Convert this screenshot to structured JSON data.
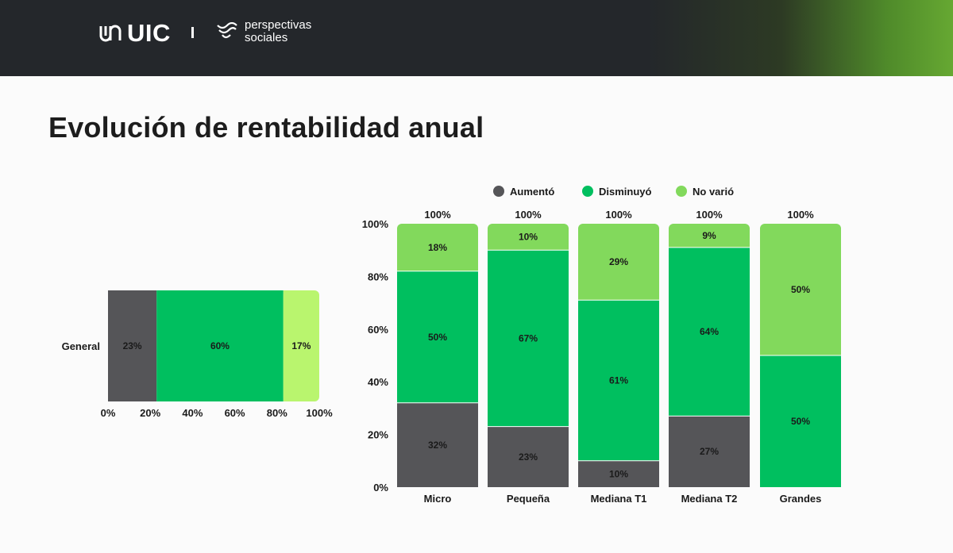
{
  "header": {
    "logo_uic_text": "UIC",
    "logo_ps_line1": "perspectivas",
    "logo_ps_line2": "sociales"
  },
  "page": {
    "title": "Evolución de rentabilidad anual"
  },
  "colors": {
    "aumento": "#555558",
    "disminuyo": "#00bf5f",
    "no_vario": "#82d95c",
    "no_vario_general": "#b9f56e"
  },
  "chart_data": [
    {
      "type": "bar",
      "orientation": "horizontal",
      "stacked": true,
      "categories": [
        "General"
      ],
      "series": [
        {
          "name": "Aumentó",
          "values": [
            23
          ],
          "labels": [
            "23%"
          ]
        },
        {
          "name": "Disminuyó",
          "values": [
            60
          ],
          "labels": [
            "60%"
          ]
        },
        {
          "name": "No varió",
          "values": [
            17
          ],
          "labels": [
            "17%"
          ]
        }
      ],
      "x_ticks": [
        "0%",
        "20%",
        "40%",
        "60%",
        "80%",
        "100%"
      ],
      "xlim": [
        0,
        100
      ]
    },
    {
      "type": "bar",
      "orientation": "vertical",
      "stacked": true,
      "categories": [
        "Micro",
        "Pequeña",
        "Mediana T1",
        "Mediana T2",
        "Grandes"
      ],
      "series": [
        {
          "name": "Aumentó",
          "values": [
            32,
            23,
            10,
            27,
            0
          ],
          "labels": [
            "32%",
            "23%",
            "10%",
            "27%",
            ""
          ]
        },
        {
          "name": "Disminuyó",
          "values": [
            50,
            67,
            61,
            64,
            50
          ],
          "labels": [
            "50%",
            "67%",
            "61%",
            "64%",
            "50%"
          ]
        },
        {
          "name": "No varió",
          "values": [
            18,
            10,
            29,
            9,
            50
          ],
          "labels": [
            "18%",
            "10%",
            "29%",
            "9%",
            "50%"
          ]
        }
      ],
      "totals": [
        "100%",
        "100%",
        "100%",
        "100%",
        "100%"
      ],
      "y_ticks": [
        "0%",
        "20%",
        "40%",
        "60%",
        "80%",
        "100%"
      ],
      "ylim": [
        0,
        100
      ],
      "legend": {
        "position": "top",
        "entries": [
          "Aumentó",
          "Disminuyó",
          "No varió"
        ]
      }
    }
  ]
}
